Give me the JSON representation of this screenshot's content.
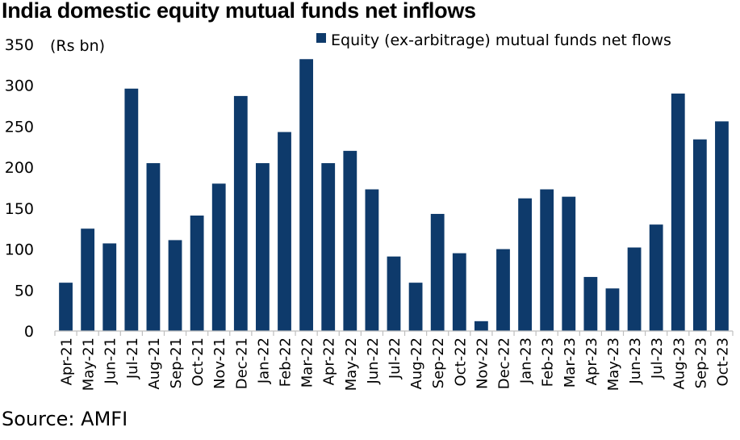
{
  "title": "India domestic equity mutual funds net inflows",
  "source": "Source: AMFI",
  "chart_data": {
    "type": "bar",
    "title": "India domestic equity mutual funds net inflows",
    "unit_label": "(Rs bn)",
    "xlabel": "",
    "ylabel": "",
    "ylim": [
      0,
      350
    ],
    "yticks": [
      0,
      50,
      100,
      150,
      200,
      250,
      300,
      350
    ],
    "grid": false,
    "legend_position": "top",
    "color": "#0e3a6b",
    "categories": [
      "Apr-21",
      "May-21",
      "Jun-21",
      "Jul-21",
      "Aug-21",
      "Sep-21",
      "Oct-21",
      "Nov-21",
      "Dec-21",
      "Jan-22",
      "Feb-22",
      "Mar-22",
      "Apr-22",
      "May-22",
      "Jun-22",
      "Jul-22",
      "Aug-22",
      "Sep-22",
      "Oct-22",
      "Nov-22",
      "Dec-22",
      "Jan-23",
      "Feb-23",
      "Mar-23",
      "Apr-23",
      "May-23",
      "Jun-23",
      "Jul-23",
      "Aug-23",
      "Sep-23",
      "Oct-23"
    ],
    "series": [
      {
        "name": "Equity (ex-arbitrage) mutual funds net flows",
        "values": [
          59,
          125,
          107,
          296,
          205,
          111,
          141,
          180,
          287,
          205,
          243,
          332,
          205,
          220,
          173,
          91,
          59,
          143,
          95,
          12,
          100,
          162,
          173,
          164,
          66,
          52,
          102,
          130,
          290,
          234,
          256
        ]
      }
    ]
  }
}
